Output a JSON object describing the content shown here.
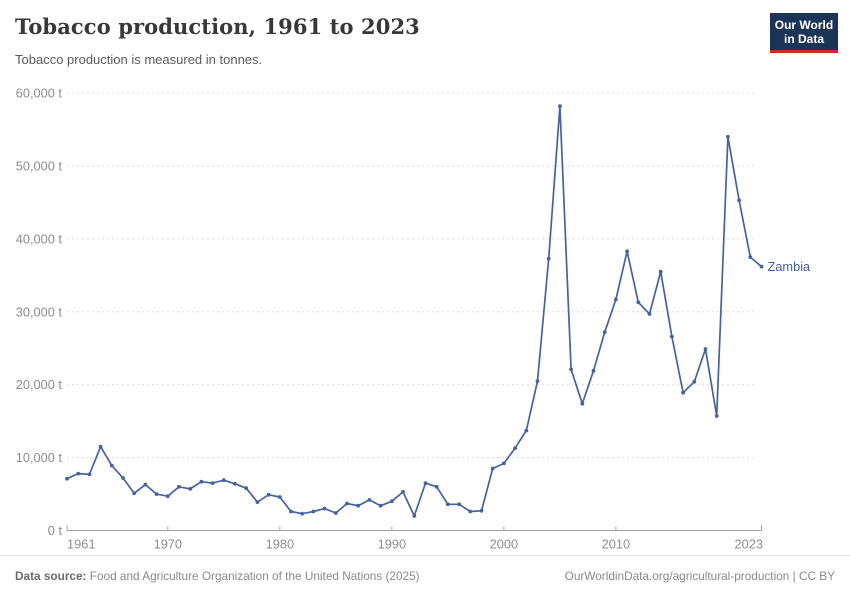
{
  "header": {
    "title": "Tobacco production, 1961 to 2023",
    "subtitle": "Tobacco production is measured in tonnes.",
    "logo_line1": "Our World",
    "logo_line2": "in Data"
  },
  "chart_data": {
    "type": "line",
    "title": "Tobacco production, 1961 to 2023",
    "ylabel": "tonnes",
    "xlabel": "",
    "xlim": [
      1961,
      2023
    ],
    "ylim": [
      0,
      60000
    ],
    "grid": "horizontal-dashed",
    "line_color": "#4462a4",
    "axis_color": "#a3a3a3",
    "grid_color": "#dadada",
    "end_label": "Zambia",
    "y_ticks": [
      {
        "value": 0,
        "label": "0 t"
      },
      {
        "value": 10000,
        "label": "10,000 t"
      },
      {
        "value": 20000,
        "label": "20,000 t"
      },
      {
        "value": 30000,
        "label": "30,000 t"
      },
      {
        "value": 40000,
        "label": "40,000 t"
      },
      {
        "value": 50000,
        "label": "50,000 t"
      },
      {
        "value": 60000,
        "label": "60,000 t"
      }
    ],
    "x_ticks": [
      {
        "value": 1961,
        "label": "1961"
      },
      {
        "value": 1970,
        "label": "1970"
      },
      {
        "value": 1980,
        "label": "1980"
      },
      {
        "value": 1990,
        "label": "1990"
      },
      {
        "value": 2000,
        "label": "2000"
      },
      {
        "value": 2010,
        "label": "2010"
      },
      {
        "value": 2023,
        "label": "2023"
      }
    ],
    "series": [
      {
        "name": "Zambia",
        "x": [
          1961,
          1962,
          1963,
          1964,
          1965,
          1966,
          1967,
          1968,
          1969,
          1970,
          1971,
          1972,
          1973,
          1974,
          1975,
          1976,
          1977,
          1978,
          1979,
          1980,
          1981,
          1982,
          1983,
          1984,
          1985,
          1986,
          1987,
          1988,
          1989,
          1990,
          1991,
          1992,
          1993,
          1994,
          1995,
          1996,
          1997,
          1998,
          1999,
          2000,
          2001,
          2002,
          2003,
          2004,
          2005,
          2006,
          2007,
          2008,
          2009,
          2010,
          2011,
          2012,
          2013,
          2014,
          2015,
          2016,
          2017,
          2018,
          2019,
          2020,
          2021,
          2022,
          2023
        ],
        "values": [
          7100,
          7800,
          7700,
          11500,
          8900,
          7200,
          5100,
          6300,
          5000,
          4700,
          6000,
          5700,
          6700,
          6500,
          6900,
          6400,
          5800,
          3900,
          4900,
          4600,
          2600,
          2300,
          2600,
          3000,
          2400,
          3700,
          3400,
          4200,
          3400,
          4000,
          5300,
          2000,
          6500,
          6000,
          3600,
          3600,
          2600,
          2700,
          8500,
          9200,
          11300,
          13700,
          20500,
          37300,
          58200,
          22100,
          17400,
          21900,
          27200,
          31700,
          38300,
          31300,
          29700,
          35500,
          26600,
          18900,
          20400,
          24900,
          15700,
          54000,
          45300,
          37500,
          36200
        ]
      }
    ]
  },
  "footer": {
    "source_label": "Data source:",
    "source_text": " Food and Agriculture Organization of the United Nations (2025)",
    "link_text": "OurWorldinData.org/agricultural-production | CC BY"
  }
}
